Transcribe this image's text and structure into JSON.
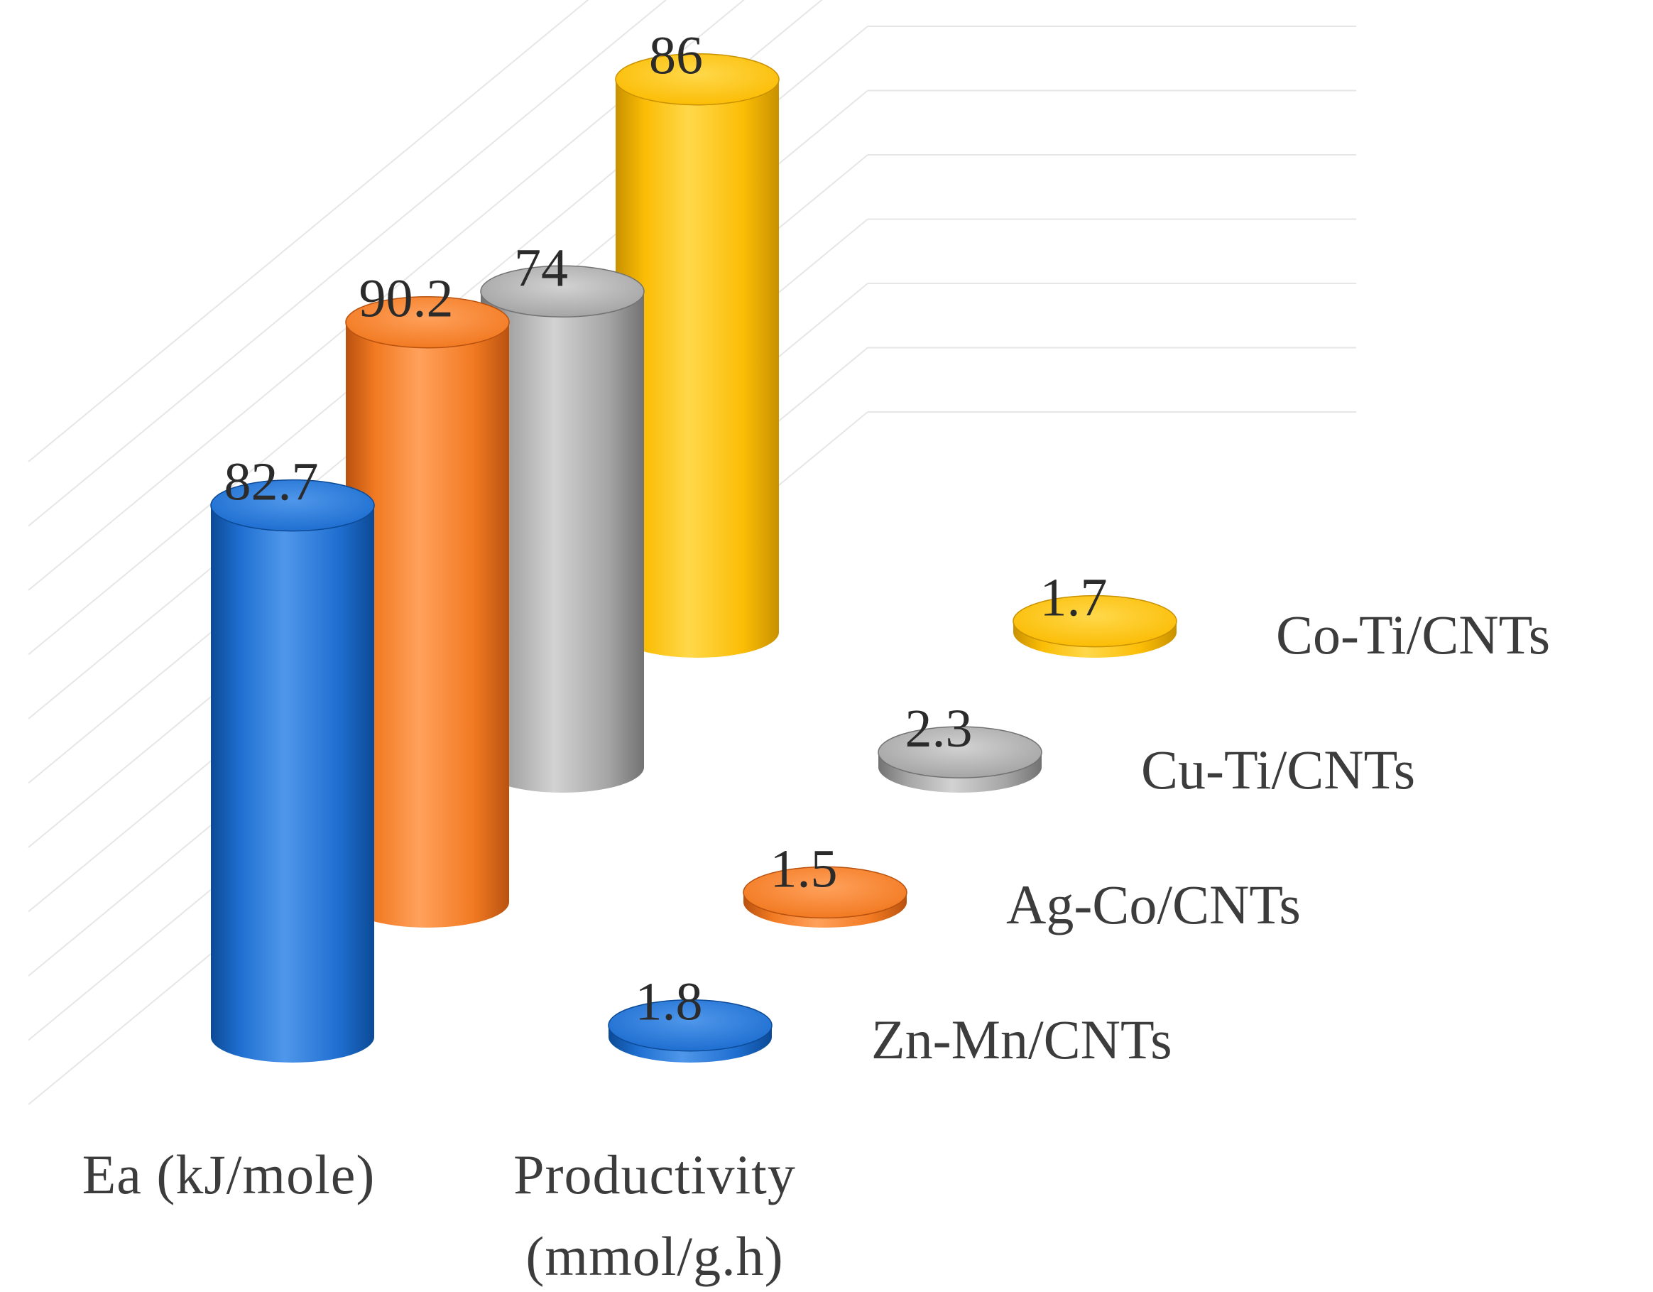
{
  "chart_data": {
    "type": "bar",
    "style": "3d-cylinder",
    "categories": [
      "Ea (kJ/mole)",
      "Productivity (mmol/g.h)"
    ],
    "category_display": [
      [
        "Ea (kJ/mole)"
      ],
      [
        "Productivity",
        "(mmol/g.h)"
      ]
    ],
    "series": [
      {
        "name": "Zn-Mn/CNTs",
        "values": [
          82.7,
          1.8
        ],
        "labels": [
          "82.7",
          "1.8"
        ],
        "color": "#1f6fd1",
        "dark": "#0c4a96",
        "light": "#4f97ea"
      },
      {
        "name": "Ag-Co/CNTs",
        "values": [
          90.2,
          1.5
        ],
        "labels": [
          "90.2",
          "1.5"
        ],
        "color": "#f27a22",
        "dark": "#b9520f",
        "light": "#ffa15c"
      },
      {
        "name": "Cu-Ti/CNTs",
        "values": [
          74,
          2.3
        ],
        "labels": [
          "74",
          "2.3"
        ],
        "color": "#a5a5a5",
        "dark": "#727272",
        "light": "#d2d2d2"
      },
      {
        "name": "Co-Ti/CNTs",
        "values": [
          86,
          1.7
        ],
        "labels": [
          "86",
          "1.7"
        ],
        "color": "#fbbd06",
        "dark": "#c99100",
        "light": "#ffd84a"
      }
    ],
    "ylim": [
      0,
      100
    ],
    "grid": true,
    "legend_position": "right, along depth axis",
    "title": "",
    "xlabel": "",
    "ylabel": ""
  }
}
